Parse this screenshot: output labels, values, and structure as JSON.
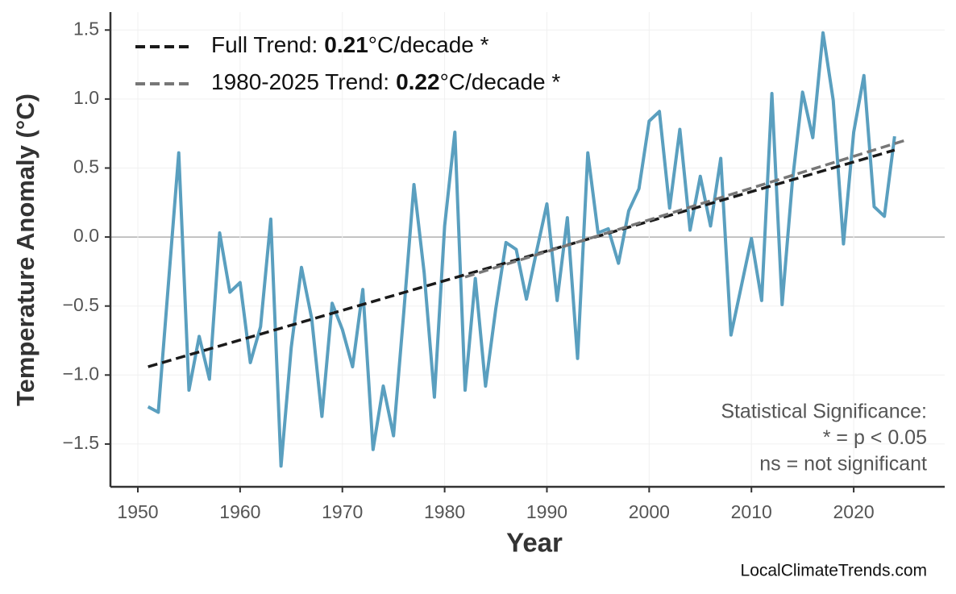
{
  "chart_data": {
    "type": "line",
    "xlabel": "Year",
    "ylabel": "Temperature Anomaly (°C)",
    "x": [
      1951,
      1952,
      1953,
      1954,
      1955,
      1956,
      1957,
      1958,
      1959,
      1960,
      1961,
      1962,
      1963,
      1964,
      1965,
      1966,
      1967,
      1968,
      1969,
      1970,
      1971,
      1972,
      1973,
      1974,
      1975,
      1976,
      1977,
      1978,
      1979,
      1980,
      1981,
      1982,
      1983,
      1984,
      1985,
      1986,
      1987,
      1988,
      1989,
      1990,
      1991,
      1992,
      1993,
      1994,
      1995,
      1996,
      1997,
      1998,
      1999,
      2000,
      2001,
      2002,
      2003,
      2004,
      2005,
      2006,
      2007,
      2008,
      2009,
      2010,
      2011,
      2012,
      2013,
      2014,
      2015,
      2016,
      2017,
      2018,
      2019,
      2020,
      2021,
      2022,
      2023,
      2024
    ],
    "values": [
      -1.23,
      -1.27,
      -0.33,
      0.61,
      -1.11,
      -0.72,
      -1.03,
      0.03,
      -0.4,
      -0.33,
      -0.91,
      -0.65,
      0.13,
      -1.66,
      -0.8,
      -0.22,
      -0.59,
      -1.3,
      -0.48,
      -0.67,
      -0.94,
      -0.38,
      -1.54,
      -1.08,
      -1.44,
      -0.55,
      0.38,
      -0.26,
      -1.16,
      0.08,
      0.76,
      -1.11,
      -0.3,
      -1.08,
      -0.52,
      -0.04,
      -0.09,
      -0.45,
      -0.1,
      0.24,
      -0.46,
      0.14,
      -0.88,
      0.61,
      0.03,
      0.06,
      -0.19,
      0.19,
      0.35,
      0.84,
      0.91,
      0.21,
      0.78,
      0.05,
      0.44,
      0.08,
      0.57,
      -0.71,
      -0.36,
      -0.01,
      -0.46,
      1.04,
      -0.49,
      0.4,
      1.05,
      0.72,
      1.48,
      0.99,
      -0.05,
      0.76,
      1.17,
      0.22,
      0.15,
      0.73
    ],
    "color": "#5a9fbf",
    "trend_lines": [
      {
        "label": "Full Trend:",
        "rate": 0.21,
        "unit": "°C/decade *",
        "color": "#1a1a1a",
        "x": [
          1951,
          2024
        ],
        "values": [
          -0.94,
          0.63
        ]
      },
      {
        "label": "1980-2025 Trend:",
        "rate": 0.22,
        "unit": "°C/decade *",
        "color": "#777777",
        "x": [
          1982,
          2025
        ],
        "values": [
          -0.29,
          0.7
        ]
      }
    ],
    "annotation": [
      "Statistical Significance:",
      "* = p < 0.05",
      "ns = not significant"
    ],
    "source": "LocalClimateTrends.com",
    "xlim": [
      1947.32,
      2028.9
    ],
    "xticks": [
      1950,
      1960,
      1970,
      1980,
      1990,
      2000,
      2010,
      2020
    ],
    "ylim": [
      -1.81,
      1.63
    ],
    "yticks": [
      {
        "value": -1.5,
        "label": "−1.5"
      },
      {
        "value": -1.0,
        "label": "−1.0"
      },
      {
        "value": -0.5,
        "label": "−0.5"
      },
      {
        "value": 0,
        "label": "0.0"
      },
      0.5,
      {
        "value": 1.0,
        "label": "1.0"
      },
      1.5
    ],
    "grid": true,
    "legend": "upper left"
  }
}
